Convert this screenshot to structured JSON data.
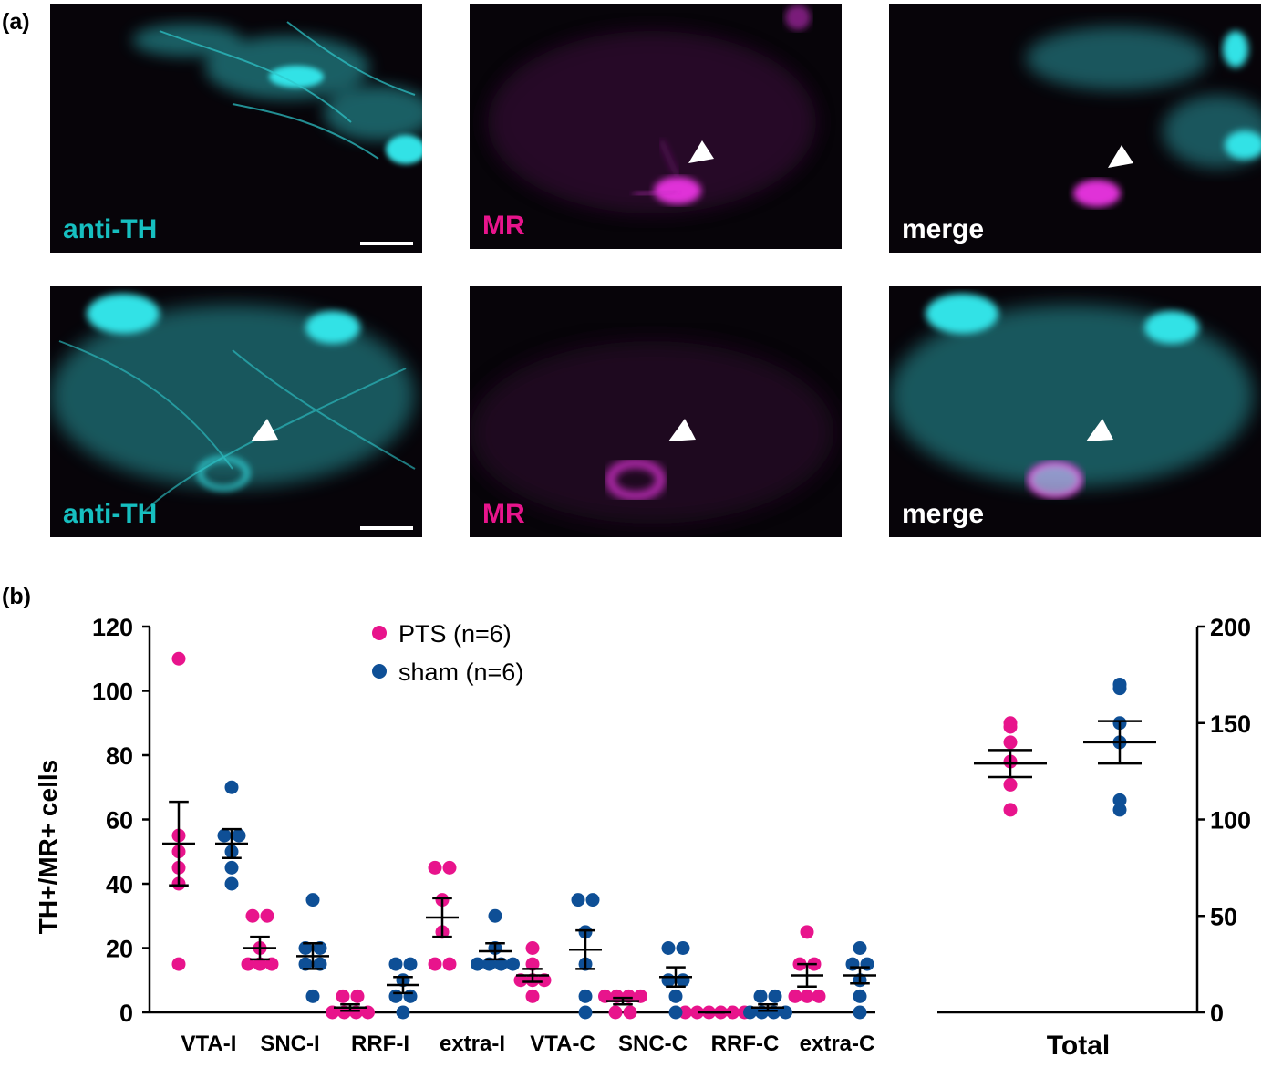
{
  "figure": {
    "panel_a_label": "(a)",
    "panel_b_label": "(b)",
    "channel_labels": {
      "th": "anti-TH",
      "mr": "MR",
      "merge": "merge"
    },
    "colors": {
      "th": "#16bfc0",
      "mr": "#e8148c",
      "merge": "#ffffff",
      "tile_bg": "#070409",
      "cyan_signal": "#33e2e6",
      "magenta_signal": "#d026cc"
    }
  },
  "chart_data": {
    "type": "scatter",
    "ylabel": "TH+/MR+ cells",
    "left_axis": {
      "ylim": [
        0,
        120
      ],
      "ticks": [
        0,
        20,
        40,
        60,
        80,
        100,
        120
      ]
    },
    "right_axis": {
      "ylim": [
        0,
        200
      ],
      "ticks": [
        0,
        50,
        100,
        150,
        200
      ]
    },
    "categories": [
      "VTA-I",
      "SNC-I",
      "RRF-I",
      "extra-I",
      "VTA-C",
      "SNC-C",
      "RRF-C",
      "extra-C"
    ],
    "total_label": "Total",
    "legend": {
      "position": "top",
      "entries": [
        "PTS (n=6)",
        "sham (n=6)"
      ]
    },
    "series": [
      {
        "name": "PTS (n=6)",
        "color": "#e8148c",
        "points": [
          [
            110,
            55,
            50,
            45,
            40,
            15
          ],
          [
            30,
            30,
            20,
            15,
            15,
            15
          ],
          [
            5,
            5,
            0,
            0,
            0,
            0
          ],
          [
            45,
            45,
            35,
            25,
            15,
            15
          ],
          [
            20,
            15,
            10,
            10,
            10,
            5
          ],
          [
            5,
            5,
            5,
            5,
            0,
            0
          ],
          [
            0,
            0,
            0,
            0,
            0,
            0
          ],
          [
            25,
            15,
            15,
            5,
            5,
            5
          ]
        ],
        "mean": [
          52.5,
          20,
          1.5,
          29.5,
          11.5,
          3.5,
          0,
          11.5
        ],
        "sem": [
          13,
          3.5,
          1,
          6,
          2,
          1,
          0,
          3.5
        ],
        "total_points": [
          150,
          148,
          140,
          130,
          118,
          105
        ],
        "total_mean": 129,
        "total_sem": 7
      },
      {
        "name": "sham (n=6)",
        "color": "#0e4f96",
        "points": [
          [
            70,
            55,
            55,
            50,
            45,
            40
          ],
          [
            35,
            20,
            20,
            15,
            15,
            5
          ],
          [
            15,
            15,
            10,
            5,
            5,
            0
          ],
          [
            30,
            20,
            15,
            15,
            15,
            15
          ],
          [
            35,
            35,
            25,
            15,
            5,
            0
          ],
          [
            20,
            20,
            10,
            10,
            5,
            0
          ],
          [
            5,
            5,
            0,
            0,
            0,
            0
          ],
          [
            20,
            15,
            15,
            10,
            5,
            0
          ]
        ],
        "mean": [
          52.5,
          17.5,
          8.5,
          19,
          19.5,
          11,
          1.5,
          11.5
        ],
        "sem": [
          4.5,
          4,
          2.5,
          2.5,
          6,
          3,
          1,
          2.5
        ],
        "total_points": [
          170,
          168,
          150,
          140,
          110,
          105
        ],
        "total_mean": 140,
        "total_sem": 11
      }
    ]
  }
}
